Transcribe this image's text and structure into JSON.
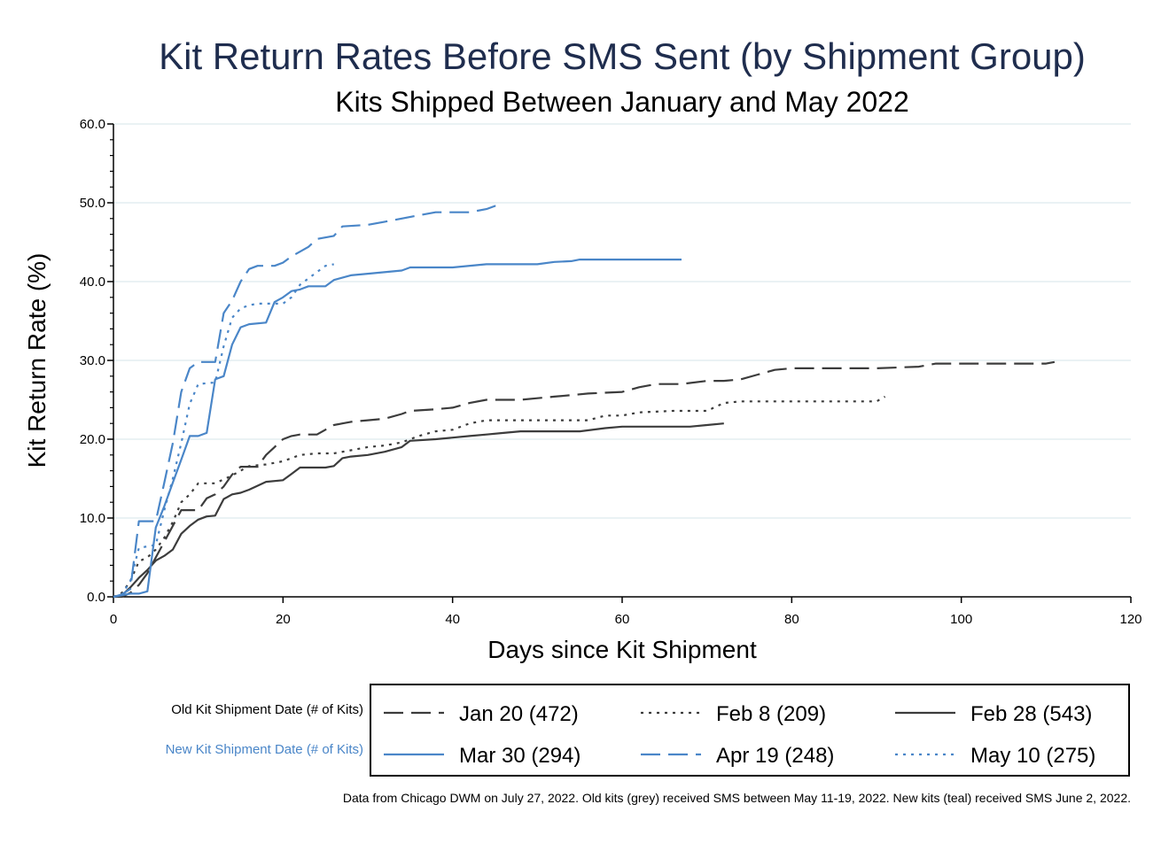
{
  "chart_data": {
    "type": "line",
    "title": "Kit Return Rates Before SMS Sent (by Shipment Group)",
    "subtitle": "Kits Shipped Between January and May 2022",
    "xlabel": "Days since Kit Shipment",
    "ylabel": "Kit Return Rate (%)",
    "xlim": [
      0,
      120
    ],
    "ylim": [
      0,
      60
    ],
    "x_ticks": [
      0,
      20,
      40,
      60,
      80,
      100,
      120
    ],
    "x_tick_labels": [
      "0",
      "20",
      "40",
      "60",
      "80",
      "100",
      "120"
    ],
    "y_ticks": [
      0,
      10,
      20,
      30,
      40,
      50,
      60
    ],
    "y_tick_labels": [
      "0.0",
      "10.0",
      "20.0",
      "30.0",
      "40.0",
      "50.0",
      "60.0"
    ],
    "grid": "horizontal",
    "legend_placement": "bottom",
    "legend_groups": [
      {
        "label": "Old Kit Shipment Date (# of Kits)",
        "color": "#000000"
      },
      {
        "label": "New Kit Shipment Date (# of Kits)",
        "color": "#4a86c8"
      }
    ],
    "series": [
      {
        "name": "Jan 20 (472)",
        "group": 0,
        "color": "#3c3c3c",
        "dash": "long",
        "points": [
          [
            0,
            0
          ],
          [
            1,
            0
          ],
          [
            2,
            0.5
          ],
          [
            3,
            1.5
          ],
          [
            4,
            3
          ],
          [
            5,
            5
          ],
          [
            6,
            7
          ],
          [
            7,
            9
          ],
          [
            8,
            11
          ],
          [
            9,
            11
          ],
          [
            10,
            11
          ],
          [
            11,
            12.5
          ],
          [
            12,
            13
          ],
          [
            13,
            14
          ],
          [
            14,
            15.5
          ],
          [
            15,
            16.5
          ],
          [
            16,
            16.5
          ],
          [
            17,
            16.5
          ],
          [
            18,
            18
          ],
          [
            19,
            19
          ],
          [
            20,
            20
          ],
          [
            21,
            20.4
          ],
          [
            22,
            20.6
          ],
          [
            24,
            20.6
          ],
          [
            25,
            21.2
          ],
          [
            26,
            21.8
          ],
          [
            27,
            22
          ],
          [
            28,
            22.2
          ],
          [
            30,
            22.4
          ],
          [
            32,
            22.6
          ],
          [
            34,
            23.2
          ],
          [
            35,
            23.6
          ],
          [
            38,
            23.8
          ],
          [
            40,
            24
          ],
          [
            42,
            24.6
          ],
          [
            44,
            25
          ],
          [
            48,
            25
          ],
          [
            50,
            25.2
          ],
          [
            52,
            25.4
          ],
          [
            54,
            25.6
          ],
          [
            56,
            25.8
          ],
          [
            60,
            26
          ],
          [
            62,
            26.6
          ],
          [
            64,
            27
          ],
          [
            67,
            27
          ],
          [
            70,
            27.4
          ],
          [
            72,
            27.4
          ],
          [
            74,
            27.6
          ],
          [
            76,
            28.2
          ],
          [
            78,
            28.8
          ],
          [
            80,
            29
          ],
          [
            90,
            29
          ],
          [
            95,
            29.2
          ],
          [
            97,
            29.6
          ],
          [
            105,
            29.6
          ],
          [
            110,
            29.6
          ],
          [
            111,
            29.8
          ]
        ]
      },
      {
        "name": "Feb 8 (209)",
        "group": 0,
        "color": "#3c3c3c",
        "dash": "short",
        "points": [
          [
            0,
            0
          ],
          [
            1,
            0.5
          ],
          [
            2,
            2
          ],
          [
            3,
            4.5
          ],
          [
            4,
            5
          ],
          [
            5,
            6
          ],
          [
            6,
            7.5
          ],
          [
            7,
            9.5
          ],
          [
            8,
            12
          ],
          [
            9,
            13
          ],
          [
            10,
            14.4
          ],
          [
            12,
            14.4
          ],
          [
            14,
            15.4
          ],
          [
            16,
            16.6
          ],
          [
            18,
            16.8
          ],
          [
            20,
            17.2
          ],
          [
            22,
            18
          ],
          [
            24,
            18.2
          ],
          [
            26,
            18.2
          ],
          [
            28,
            18.6
          ],
          [
            30,
            19
          ],
          [
            32,
            19.2
          ],
          [
            34,
            19.6
          ],
          [
            36,
            20.4
          ],
          [
            38,
            21
          ],
          [
            40,
            21.2
          ],
          [
            42,
            22
          ],
          [
            44,
            22.4
          ],
          [
            50,
            22.4
          ],
          [
            56,
            22.4
          ],
          [
            58,
            23
          ],
          [
            60,
            23
          ],
          [
            62,
            23.4
          ],
          [
            66,
            23.6
          ],
          [
            70,
            23.6
          ],
          [
            72,
            24.6
          ],
          [
            74,
            24.8
          ],
          [
            84,
            24.8
          ],
          [
            90,
            24.8
          ],
          [
            91,
            25.4
          ]
        ]
      },
      {
        "name": "Feb 28 (543)",
        "group": 0,
        "color": "#3c3c3c",
        "dash": "solid",
        "points": [
          [
            0,
            0
          ],
          [
            1,
            0.2
          ],
          [
            2,
            1.2
          ],
          [
            3,
            2.4
          ],
          [
            4,
            3.4
          ],
          [
            5,
            4.6
          ],
          [
            6,
            5.2
          ],
          [
            7,
            6
          ],
          [
            8,
            8
          ],
          [
            9,
            9
          ],
          [
            10,
            9.8
          ],
          [
            11,
            10.2
          ],
          [
            12,
            10.3
          ],
          [
            13,
            12.4
          ],
          [
            14,
            13
          ],
          [
            15,
            13.2
          ],
          [
            16,
            13.6
          ],
          [
            18,
            14.6
          ],
          [
            20,
            14.8
          ],
          [
            21,
            15.6
          ],
          [
            22,
            16.4
          ],
          [
            25,
            16.4
          ],
          [
            26,
            16.6
          ],
          [
            27,
            17.6
          ],
          [
            28,
            17.8
          ],
          [
            30,
            18
          ],
          [
            32,
            18.4
          ],
          [
            34,
            19
          ],
          [
            35,
            19.8
          ],
          [
            38,
            20
          ],
          [
            40,
            20.2
          ],
          [
            42,
            20.4
          ],
          [
            44,
            20.6
          ],
          [
            46,
            20.8
          ],
          [
            48,
            21
          ],
          [
            55,
            21
          ],
          [
            58,
            21.4
          ],
          [
            60,
            21.6
          ],
          [
            68,
            21.6
          ],
          [
            70,
            21.8
          ],
          [
            72,
            22
          ]
        ]
      },
      {
        "name": "Mar 30 (294)",
        "group": 1,
        "color": "#4a86c8",
        "dash": "solid",
        "points": [
          [
            0,
            0
          ],
          [
            1,
            0.2
          ],
          [
            2,
            0.4
          ],
          [
            3,
            0.4
          ],
          [
            4,
            0.7
          ],
          [
            5,
            8.8
          ],
          [
            6,
            11.5
          ],
          [
            7,
            14.5
          ],
          [
            8,
            17.4
          ],
          [
            9,
            20.4
          ],
          [
            10,
            20.4
          ],
          [
            11,
            20.8
          ],
          [
            12,
            27.6
          ],
          [
            13,
            28
          ],
          [
            14,
            32
          ],
          [
            15,
            34.2
          ],
          [
            16,
            34.6
          ],
          [
            18,
            34.8
          ],
          [
            19,
            37.4
          ],
          [
            20,
            38
          ],
          [
            21,
            38.8
          ],
          [
            22,
            39
          ],
          [
            23,
            39.4
          ],
          [
            25,
            39.4
          ],
          [
            26,
            40.2
          ],
          [
            28,
            40.8
          ],
          [
            30,
            41
          ],
          [
            34,
            41.4
          ],
          [
            35,
            41.8
          ],
          [
            40,
            41.8
          ],
          [
            44,
            42.2
          ],
          [
            50,
            42.2
          ],
          [
            52,
            42.5
          ],
          [
            54,
            42.6
          ],
          [
            55,
            42.8
          ],
          [
            60,
            42.8
          ],
          [
            67,
            42.8
          ]
        ]
      },
      {
        "name": "Apr 19 (248)",
        "group": 1,
        "color": "#4a86c8",
        "dash": "long",
        "points": [
          [
            0,
            0
          ],
          [
            1,
            0.3
          ],
          [
            2,
            1
          ],
          [
            3,
            9.6
          ],
          [
            5,
            9.6
          ],
          [
            6,
            14.5
          ],
          [
            7,
            19.5
          ],
          [
            8,
            26
          ],
          [
            9,
            29
          ],
          [
            10,
            29.8
          ],
          [
            12,
            29.8
          ],
          [
            13,
            36
          ],
          [
            14,
            37.6
          ],
          [
            15,
            40
          ],
          [
            16,
            41.6
          ],
          [
            17,
            42
          ],
          [
            19,
            42
          ],
          [
            20,
            42.4
          ],
          [
            21,
            43.2
          ],
          [
            22,
            43.8
          ],
          [
            23,
            44.4
          ],
          [
            24,
            45.4
          ],
          [
            26,
            45.8
          ],
          [
            27,
            47
          ],
          [
            30,
            47.2
          ],
          [
            32,
            47.6
          ],
          [
            34,
            48
          ],
          [
            36,
            48.4
          ],
          [
            38,
            48.8
          ],
          [
            42,
            48.8
          ],
          [
            44,
            49.2
          ],
          [
            45,
            49.6
          ],
          [
            46,
            49.6
          ]
        ]
      },
      {
        "name": "May 10 (275)",
        "group": 1,
        "color": "#4a86c8",
        "dash": "short",
        "points": [
          [
            0,
            0
          ],
          [
            1,
            0.3
          ],
          [
            2,
            2
          ],
          [
            3,
            6.2
          ],
          [
            5,
            6.6
          ],
          [
            6,
            11
          ],
          [
            7,
            15
          ],
          [
            8,
            19.5
          ],
          [
            9,
            24.5
          ],
          [
            10,
            27
          ],
          [
            12,
            27.2
          ],
          [
            13,
            31.8
          ],
          [
            14,
            35.4
          ],
          [
            15,
            36.6
          ],
          [
            16,
            37
          ],
          [
            17,
            37.2
          ],
          [
            20,
            37.2
          ],
          [
            21,
            38
          ],
          [
            22,
            39.6
          ],
          [
            23,
            40.4
          ],
          [
            24,
            41.2
          ],
          [
            25,
            42
          ],
          [
            26,
            42.2
          ]
        ]
      }
    ],
    "note": "Data from Chicago DWM on July 27, 2022. Old kits (grey) received SMS between May 11-19, 2022. New kits (teal) received SMS June 2, 2022."
  }
}
